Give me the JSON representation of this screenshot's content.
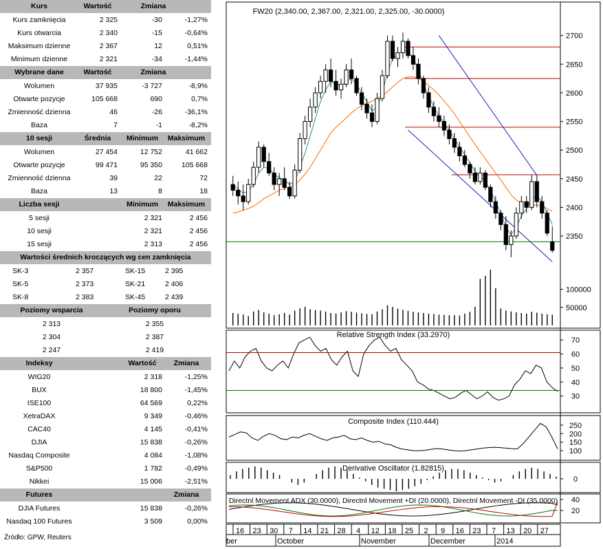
{
  "left_panel": {
    "kurs": {
      "headers": [
        "Kurs",
        "Wartość",
        "Zmiana"
      ],
      "rows": [
        [
          "Kurs zamknięcia",
          "2 325",
          "-30",
          "-1,27%"
        ],
        [
          "Kurs otwarcia",
          "2 340",
          "-15",
          "-0,64%"
        ],
        [
          "Maksimum dzienne",
          "2 367",
          "12",
          "0,51%"
        ],
        [
          "Minimum dzienne",
          "2 321",
          "-34",
          "-1,44%"
        ]
      ]
    },
    "wybrane": {
      "headers": [
        "Wybrane dane",
        "Wartość",
        "Zmiana"
      ],
      "rows": [
        [
          "Wolumen",
          "37 935",
          "-3 727",
          "-8,9%"
        ],
        [
          "Otwarte pozycje",
          "105 668",
          "690",
          "0,7%"
        ],
        [
          "Zmienność dzienna",
          "46",
          "-26",
          "-36,1%"
        ],
        [
          "Baza",
          "7",
          "-1",
          "-8,2%"
        ]
      ]
    },
    "sesji10": {
      "headers": [
        "10 sesji",
        "Średnia",
        "Minimum",
        "Maksimum"
      ],
      "rows": [
        [
          "Wolumen",
          "27 454",
          "12 752",
          "41 662"
        ],
        [
          "Otwarte pozycje",
          "99 471",
          "95 350",
          "105 668"
        ],
        [
          "Zmienność dzienna",
          "39",
          "22",
          "72"
        ],
        [
          "Baza",
          "13",
          "8",
          "18"
        ]
      ]
    },
    "liczba": {
      "headers": [
        "Liczba sesji",
        "Minimum",
        "Maksimum"
      ],
      "rows": [
        [
          "5 sesji",
          "2 321",
          "2 456"
        ],
        [
          "10 sesji",
          "2 321",
          "2 456"
        ],
        [
          "15 sesji",
          "2 313",
          "2 456"
        ]
      ]
    },
    "srednie": {
      "header": "Wartości średnich kroczących wg cen zamknięcia",
      "rows": [
        [
          "SK-3",
          "2 357",
          "SK-15",
          "2 395"
        ],
        [
          "SK-5",
          "2 373",
          "SK-21",
          "2 406"
        ],
        [
          "SK-8",
          "2 383",
          "SK-45",
          "2 439"
        ]
      ]
    },
    "poziomy": {
      "headers": [
        "Poziomy wsparcia",
        "Poziomy oporu"
      ],
      "rows": [
        [
          "2 313",
          "2 355"
        ],
        [
          "2 304",
          "2 387"
        ],
        [
          "2 247",
          "2 419"
        ]
      ]
    },
    "indeksy": {
      "headers": [
        "Indeksy",
        "Wartość",
        "Zmiana"
      ],
      "rows": [
        [
          "WIG20",
          "2 318",
          "-1,25%"
        ],
        [
          "BUX",
          "18 800",
          "-1,45%"
        ],
        [
          "ISE100",
          "64 569",
          "0,22%"
        ],
        [
          "XetraDAX",
          "9 349",
          "-0,46%"
        ],
        [
          "CAC40",
          "4 145",
          "-0,41%"
        ],
        [
          "DJIA",
          "15 838",
          "-0,26%"
        ],
        [
          "Nasdaq Composite",
          "4 084",
          "-1,08%"
        ],
        [
          "S&P500",
          "1 782",
          "-0,49%"
        ],
        [
          "Nikkei",
          "15 006",
          "-2,51%"
        ]
      ]
    },
    "futures": {
      "headers": [
        "Futures",
        "Zmiana"
      ],
      "rows": [
        [
          "DJIA Futures",
          "15 838",
          "-0,26%"
        ],
        [
          "Nasdaq 100 Futures",
          "3 509",
          "0,00%"
        ]
      ]
    },
    "source": "Źródło: GPW, Reuters"
  },
  "colors": {
    "header_bg": "#b8b8b8",
    "sma_short": "#2e8b8b",
    "sma_long": "#ff6a00",
    "channel": "#1f1fb4",
    "resistance": "#b40000",
    "support": "#007800"
  },
  "chart_data": {
    "type": "candlestick",
    "title": "FW20 (2,340.00, 2,367.00, 2,321.00, 2,325.00, -30.0000)",
    "ohlc": [
      [
        2440,
        2455,
        2420,
        2430
      ],
      [
        2430,
        2445,
        2405,
        2420
      ],
      [
        2420,
        2440,
        2395,
        2410
      ],
      [
        2410,
        2450,
        2405,
        2440
      ],
      [
        2440,
        2480,
        2435,
        2470
      ],
      [
        2470,
        2515,
        2460,
        2505
      ],
      [
        2505,
        2510,
        2470,
        2480
      ],
      [
        2480,
        2495,
        2455,
        2460
      ],
      [
        2460,
        2470,
        2430,
        2440
      ],
      [
        2440,
        2460,
        2420,
        2450
      ],
      [
        2450,
        2470,
        2430,
        2435
      ],
      [
        2435,
        2445,
        2415,
        2420
      ],
      [
        2420,
        2475,
        2415,
        2465
      ],
      [
        2465,
        2530,
        2460,
        2520
      ],
      [
        2520,
        2560,
        2510,
        2550
      ],
      [
        2550,
        2590,
        2540,
        2575
      ],
      [
        2575,
        2610,
        2565,
        2600
      ],
      [
        2600,
        2630,
        2590,
        2620
      ],
      [
        2620,
        2650,
        2600,
        2640
      ],
      [
        2640,
        2660,
        2610,
        2620
      ],
      [
        2620,
        2640,
        2595,
        2605
      ],
      [
        2605,
        2625,
        2590,
        2615
      ],
      [
        2615,
        2650,
        2610,
        2640
      ],
      [
        2640,
        2660,
        2615,
        2625
      ],
      [
        2625,
        2630,
        2595,
        2600
      ],
      [
        2600,
        2610,
        2570,
        2580
      ],
      [
        2580,
        2590,
        2555,
        2565
      ],
      [
        2565,
        2580,
        2540,
        2550
      ],
      [
        2550,
        2600,
        2545,
        2590
      ],
      [
        2590,
        2640,
        2585,
        2630
      ],
      [
        2630,
        2700,
        2625,
        2690
      ],
      [
        2690,
        2700,
        2655,
        2660
      ],
      [
        2660,
        2680,
        2645,
        2670
      ],
      [
        2670,
        2705,
        2660,
        2690
      ],
      [
        2690,
        2695,
        2660,
        2665
      ],
      [
        2665,
        2680,
        2640,
        2650
      ],
      [
        2650,
        2660,
        2615,
        2625
      ],
      [
        2625,
        2630,
        2590,
        2600
      ],
      [
        2600,
        2610,
        2565,
        2575
      ],
      [
        2575,
        2585,
        2550,
        2560
      ],
      [
        2560,
        2575,
        2540,
        2550
      ],
      [
        2550,
        2560,
        2525,
        2535
      ],
      [
        2535,
        2545,
        2510,
        2520
      ],
      [
        2520,
        2530,
        2495,
        2505
      ],
      [
        2505,
        2515,
        2480,
        2490
      ],
      [
        2490,
        2500,
        2470,
        2475
      ],
      [
        2475,
        2480,
        2450,
        2460
      ],
      [
        2460,
        2470,
        2440,
        2445
      ],
      [
        2445,
        2470,
        2440,
        2460
      ],
      [
        2460,
        2465,
        2430,
        2435
      ],
      [
        2435,
        2440,
        2400,
        2410
      ],
      [
        2410,
        2420,
        2380,
        2390
      ],
      [
        2390,
        2395,
        2360,
        2370
      ],
      [
        2370,
        2385,
        2325,
        2335
      ],
      [
        2335,
        2360,
        2313,
        2350
      ],
      [
        2350,
        2400,
        2345,
        2390
      ],
      [
        2390,
        2420,
        2380,
        2410
      ],
      [
        2410,
        2420,
        2390,
        2400
      ],
      [
        2400,
        2456,
        2395,
        2445
      ],
      [
        2445,
        2456,
        2400,
        2410
      ],
      [
        2410,
        2420,
        2380,
        2390
      ],
      [
        2390,
        2395,
        2350,
        2355
      ],
      [
        2340,
        2367,
        2321,
        2325
      ]
    ],
    "sma_short": [
      2440,
      2432,
      2425,
      2428,
      2440,
      2460,
      2470,
      2468,
      2458,
      2452,
      2448,
      2440,
      2445,
      2470,
      2495,
      2525,
      2555,
      2585,
      2605,
      2620,
      2615,
      2612,
      2620,
      2625,
      2615,
      2600,
      2585,
      2568,
      2575,
      2600,
      2635,
      2660,
      2665,
      2675,
      2672,
      2660,
      2640,
      2615,
      2595,
      2575,
      2560,
      2548,
      2535,
      2520,
      2505,
      2492,
      2478,
      2463,
      2455,
      2445,
      2430,
      2410,
      2390,
      2365,
      2352,
      2365,
      2385,
      2398,
      2415,
      2420,
      2410,
      2390,
      2370
    ],
    "sma_long": [
      2390,
      2392,
      2395,
      2398,
      2402,
      2408,
      2415,
      2420,
      2425,
      2430,
      2433,
      2436,
      2440,
      2448,
      2458,
      2470,
      2485,
      2500,
      2515,
      2530,
      2540,
      2548,
      2556,
      2565,
      2572,
      2578,
      2582,
      2585,
      2590,
      2595,
      2602,
      2610,
      2618,
      2625,
      2628,
      2628,
      2625,
      2620,
      2613,
      2605,
      2596,
      2586,
      2575,
      2563,
      2550,
      2537,
      2523,
      2510,
      2497,
      2485,
      2472,
      2460,
      2448,
      2435,
      2422,
      2413,
      2408,
      2405,
      2404,
      2404,
      2402,
      2398,
      2393
    ],
    "volume": [
      40,
      38,
      35,
      30,
      45,
      50,
      42,
      38,
      33,
      36,
      40,
      35,
      48,
      55,
      60,
      52,
      50,
      48,
      45,
      40,
      38,
      42,
      46,
      44,
      41,
      39,
      37,
      36,
      45,
      52,
      65,
      60,
      54,
      50,
      47,
      44,
      42,
      40,
      38,
      37,
      35,
      34,
      33,
      33,
      32,
      38,
      44,
      60,
      150,
      160,
      180,
      120,
      55,
      48,
      45,
      42,
      40,
      38,
      44,
      41,
      38,
      36,
      35
    ],
    "rsi": [
      48,
      55,
      50,
      58,
      62,
      64,
      55,
      50,
      48,
      52,
      55,
      50,
      60,
      68,
      70,
      72,
      66,
      62,
      64,
      56,
      52,
      58,
      62,
      48,
      44,
      60,
      66,
      70,
      72,
      66,
      62,
      64,
      56,
      52,
      48,
      40,
      38,
      35,
      34,
      32,
      30,
      28,
      29,
      32,
      34,
      31,
      28,
      30,
      33,
      29,
      27,
      28,
      30,
      38,
      42,
      48,
      46,
      52,
      50,
      40,
      36,
      33.3
    ],
    "composite": [
      180,
      195,
      210,
      205,
      175,
      160,
      185,
      200,
      190,
      170,
      165,
      180,
      175,
      190,
      200,
      185,
      170,
      160,
      175,
      180,
      190,
      170,
      165,
      175,
      160,
      150,
      155,
      140,
      135,
      120,
      110,
      105,
      100,
      100,
      102,
      108,
      112,
      110,
      105,
      100,
      98,
      100,
      105,
      110,
      115,
      118,
      120,
      118,
      115,
      112,
      110,
      140,
      180,
      220,
      260,
      240,
      180,
      110.4
    ],
    "derivative": [
      3,
      6,
      8,
      9,
      10,
      9,
      7,
      5,
      3,
      0,
      -3,
      -5,
      -3,
      0,
      4,
      7,
      9,
      10,
      9,
      7,
      4,
      1,
      -2,
      -5,
      -7,
      -8,
      -9,
      -10,
      -9,
      -8,
      -6,
      -4,
      -1,
      2,
      5,
      7,
      8,
      8,
      7,
      5,
      3,
      1,
      -1,
      -3,
      -2,
      0,
      3,
      6,
      8,
      9,
      8,
      6,
      4,
      1.8
    ],
    "dmi": {
      "adx": 30,
      "plus_di": 20,
      "minus_di": 35
    },
    "y_ticks": [
      2700,
      2650,
      2600,
      2550,
      2500,
      2450,
      2400,
      2350
    ],
    "ylim": [
      2284,
      2720
    ],
    "volume_ticks": [
      "100000",
      "50000"
    ],
    "volume_max": 120000,
    "support_lines": [
      2680,
      2625,
      2540,
      2457,
      2340
    ],
    "channel": {
      "upper_from": [
        2700,
        40
      ],
      "upper_to": [
        2456,
        59
      ],
      "lower_from": [
        2535,
        34
      ],
      "lower_to": [
        2305,
        62
      ]
    },
    "x_ticks": [
      "16",
      "23",
      "30",
      "7",
      "14",
      "21",
      "28",
      "4",
      "12",
      "18",
      "25",
      "2",
      "9",
      "16",
      "23",
      "7",
      "13",
      "20",
      "27"
    ],
    "months": [
      "ber",
      "October",
      "November",
      "December",
      "2014"
    ],
    "panels": {
      "rsi": {
        "title": "Relative Strength Index (33.2970)",
        "ticks": [
          "70",
          "60",
          "50",
          "40",
          "30"
        ]
      },
      "composite": {
        "title": "Composite Index (110.444)",
        "ticks": [
          "250",
          "200",
          "150",
          "100"
        ]
      },
      "derivative": {
        "title": "Derivative Oscillator (1.82815)",
        "ticks": [
          "0"
        ]
      },
      "dmi": {
        "title": "Directnl Movement ADX (30.0000), Directnl Movement +DI (20.0000), Directnl Movement -DI (35.0000)",
        "ticks": [
          "40",
          "20"
        ]
      }
    }
  }
}
